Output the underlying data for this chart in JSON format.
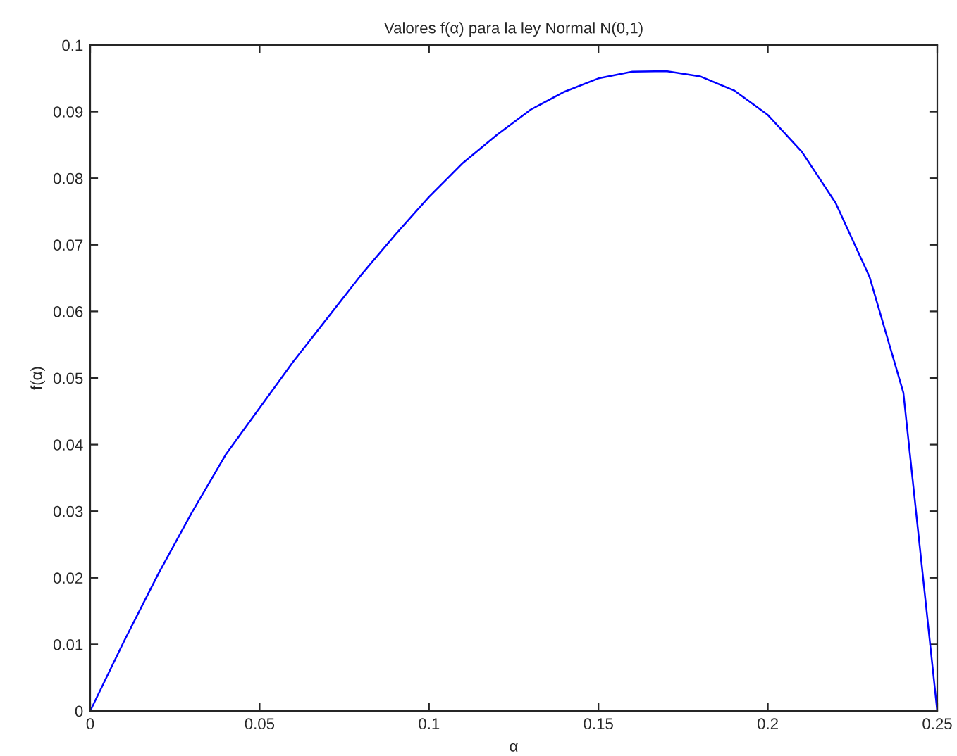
{
  "chart_data": {
    "type": "line",
    "title": "Valores f(α) para la ley Normal N(0,1)",
    "xlabel": "α",
    "ylabel": "f(α)",
    "x": [
      0,
      0.01,
      0.02,
      0.03,
      0.04,
      0.05,
      0.06,
      0.07,
      0.08,
      0.09,
      0.1,
      0.11,
      0.12,
      0.13,
      0.14,
      0.15,
      0.16,
      0.17,
      0.18,
      0.19,
      0.2,
      0.21,
      0.22,
      0.23,
      0.24,
      0.25
    ],
    "series": [
      {
        "color": "#0000ff",
        "values": [
          0,
          0.0105,
          0.0205,
          0.0298,
          0.0385,
          0.0455,
          0.0525,
          0.059,
          0.0655,
          0.0715,
          0.0772,
          0.0823,
          0.0865,
          0.0903,
          0.093,
          0.095,
          0.096,
          0.0961,
          0.0953,
          0.0932,
          0.0895,
          0.084,
          0.0763,
          0.0652,
          0.0478,
          0
        ]
      }
    ],
    "xlim": [
      0,
      0.25
    ],
    "ylim": [
      0,
      0.1
    ],
    "xticks": [
      0,
      0.05,
      0.1,
      0.15,
      0.2,
      0.25
    ],
    "yticks": [
      0,
      0.01,
      0.02,
      0.03,
      0.04,
      0.05,
      0.06,
      0.07,
      0.08,
      0.09,
      0.1
    ],
    "grid": false,
    "legend": false,
    "marker": "none",
    "line_style": "solid"
  }
}
